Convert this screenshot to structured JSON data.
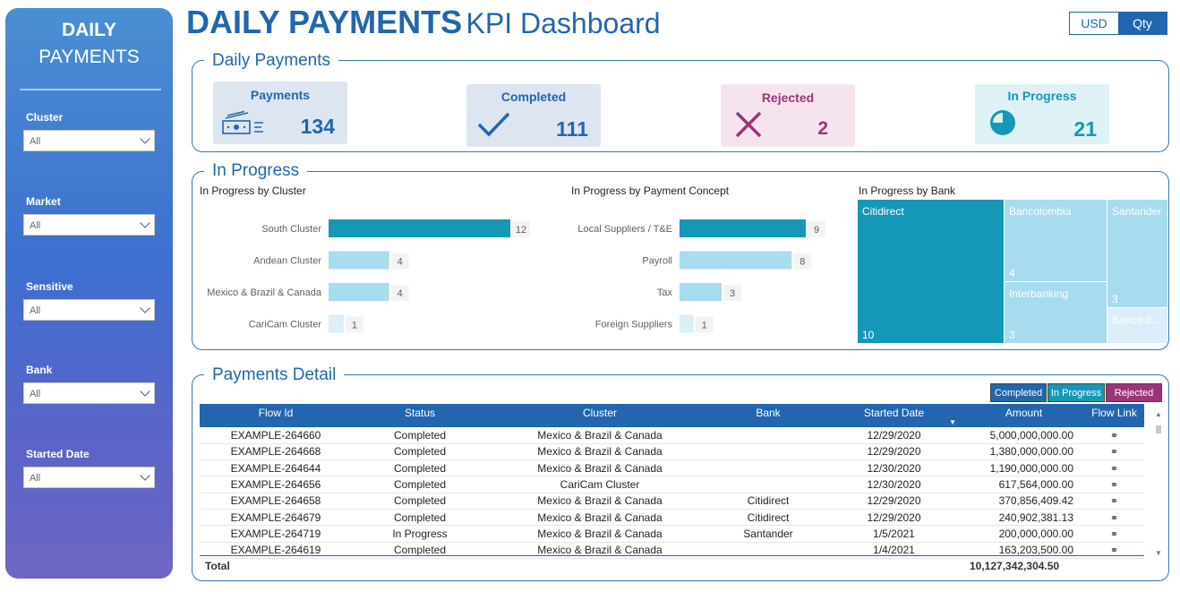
{
  "sidebar": {
    "title_line1": "DAILY",
    "title_line2": "PAYMENTS",
    "filters": [
      {
        "label": "Cluster",
        "value": "All"
      },
      {
        "label": "Market",
        "value": "All"
      },
      {
        "label": "Sensitive",
        "value": "All"
      },
      {
        "label": "Bank",
        "value": "All"
      },
      {
        "label": "Started Date",
        "value": "All"
      }
    ]
  },
  "header": {
    "title_bold": "DAILY PAYMENTS",
    "title_light": "KPI Dashboard"
  },
  "toggle": {
    "usd": "USD",
    "qty": "Qty",
    "selected": "Qty"
  },
  "kpi_panel": {
    "title": "Daily Payments",
    "cards": [
      {
        "label": "Payments",
        "value": "134",
        "icon": "money-icon",
        "color": "#2166ae",
        "bg": "#dde5f1"
      },
      {
        "label": "Completed",
        "value": "111",
        "icon": "checkmark-icon",
        "color": "#2166ae",
        "bg": "#dde5f1"
      },
      {
        "label": "Rejected",
        "value": "2",
        "icon": "x-icon",
        "color": "#a0327a",
        "bg": "#f5e4ee"
      },
      {
        "label": "In Progress",
        "value": "21",
        "icon": "pie-icon",
        "color": "#1597b8",
        "bg": "#def1f4"
      }
    ]
  },
  "progress_panel": {
    "title": "In Progress",
    "cluster_chart": {
      "title": "In Progress by Cluster"
    },
    "concept_chart": {
      "title": "In Progress by Payment Concept"
    },
    "bank_chart": {
      "title": "In Progress by Bank"
    }
  },
  "chart_data": [
    {
      "type": "bar",
      "orientation": "horizontal",
      "title": "In Progress by Cluster",
      "categories": [
        "South Cluster",
        "Andean Cluster",
        "Mexico & Brazil & Canada",
        "CariCam Cluster"
      ],
      "values": [
        12,
        4,
        4,
        1
      ]
    },
    {
      "type": "bar",
      "orientation": "horizontal",
      "title": "In Progress by Payment Concept",
      "categories": [
        "Local Suppliers / T&E",
        "Payroll",
        "Tax",
        "Foreign Suppliers"
      ],
      "values": [
        9,
        8,
        3,
        1
      ]
    },
    {
      "type": "treemap",
      "title": "In Progress by Bank",
      "categories": [
        "Citidirect",
        "Bancolombia",
        "Santander",
        "Interbanking",
        "Banco d..."
      ],
      "values": [
        10,
        4,
        3,
        3,
        1
      ]
    }
  ],
  "detail_panel": {
    "title": "Payments Detail",
    "legend": [
      {
        "label": "Completed",
        "color": "#2166ae"
      },
      {
        "label": "In Progress",
        "color": "#1597b8"
      },
      {
        "label": "Rejected",
        "color": "#a0327a"
      }
    ],
    "columns": [
      "Flow Id",
      "Status",
      "Cluster",
      "Bank",
      "Started Date",
      "Amount",
      "Flow Link"
    ],
    "sort_column": "Started Date",
    "rows": [
      [
        "EXAMPLE-264660",
        "Completed",
        "Mexico & Brazil & Canada",
        "",
        "12/29/2020",
        "5,000,000,000.00"
      ],
      [
        "EXAMPLE-264668",
        "Completed",
        "Mexico & Brazil & Canada",
        "",
        "12/29/2020",
        "1,380,000,000.00"
      ],
      [
        "EXAMPLE-264644",
        "Completed",
        "Mexico & Brazil & Canada",
        "",
        "12/30/2020",
        "1,190,000,000.00"
      ],
      [
        "EXAMPLE-264656",
        "Completed",
        "CariCam Cluster",
        "",
        "12/30/2020",
        "617,564,000.00"
      ],
      [
        "EXAMPLE-264658",
        "Completed",
        "Mexico & Brazil & Canada",
        "Citidirect",
        "12/29/2020",
        "370,856,409.42"
      ],
      [
        "EXAMPLE-264679",
        "Completed",
        "Mexico & Brazil & Canada",
        "Citidirect",
        "12/29/2020",
        "240,902,381.13"
      ],
      [
        "EXAMPLE-264719",
        "In Progress",
        "Mexico & Brazil & Canada",
        "Santander",
        "1/5/2021",
        "200,000,000.00"
      ],
      [
        "EXAMPLE-264619",
        "Completed",
        "Mexico & Brazil & Canada",
        "",
        "1/4/2021",
        "163,203,500.00"
      ]
    ],
    "total_label": "Total",
    "total_amount": "10,127,342,304.50"
  }
}
